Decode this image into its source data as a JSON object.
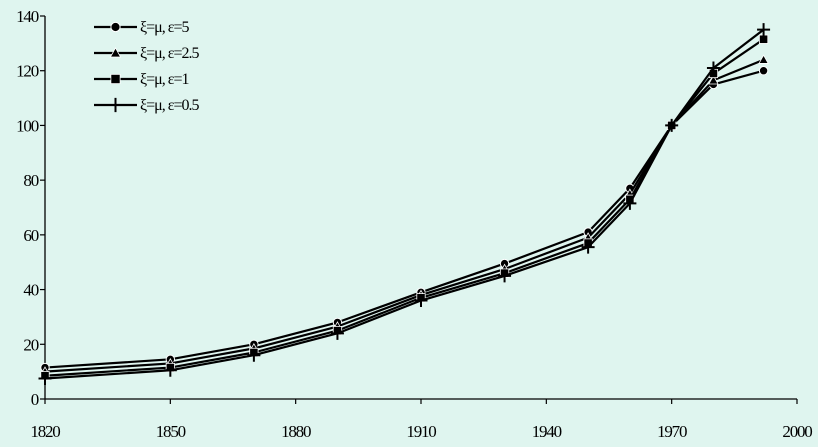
{
  "chart_data": {
    "type": "line",
    "x": [
      1820,
      1850,
      1870,
      1890,
      1910,
      1930,
      1950,
      1960,
      1970,
      1980,
      1992
    ],
    "series": [
      {
        "name": "ξ=μ, ε=5",
        "marker": "circle",
        "values": [
          11.5,
          14.5,
          20,
          28,
          39,
          49.5,
          61,
          77,
          100,
          115,
          120
        ]
      },
      {
        "name": "ξ=μ, ε=2.5",
        "marker": "triangle",
        "values": [
          10,
          13,
          18.5,
          26.5,
          38,
          47.5,
          59,
          75,
          100,
          116.5,
          124
        ]
      },
      {
        "name": "ξ=μ, ε=1",
        "marker": "square",
        "values": [
          8.5,
          11.5,
          17,
          25,
          37,
          46,
          57,
          73,
          100,
          119,
          131.5
        ]
      },
      {
        "name": "ξ=μ, ε=0.5",
        "marker": "plus",
        "values": [
          7.5,
          10.5,
          16,
          24,
          36,
          45,
          55.5,
          71.5,
          100,
          121,
          135
        ]
      }
    ],
    "x_ticks": [
      "1820",
      "1850",
      "1880",
      "1910",
      "1940",
      "1970",
      "2000"
    ],
    "y_ticks": [
      "0",
      "20",
      "40",
      "60",
      "80",
      "100",
      "120",
      "140"
    ],
    "xlim": [
      1820,
      2000
    ],
    "ylim": [
      0,
      140
    ],
    "grid": false,
    "legend_position": "top-left",
    "background_color": "#dff5ef",
    "line_color": "#000000"
  }
}
